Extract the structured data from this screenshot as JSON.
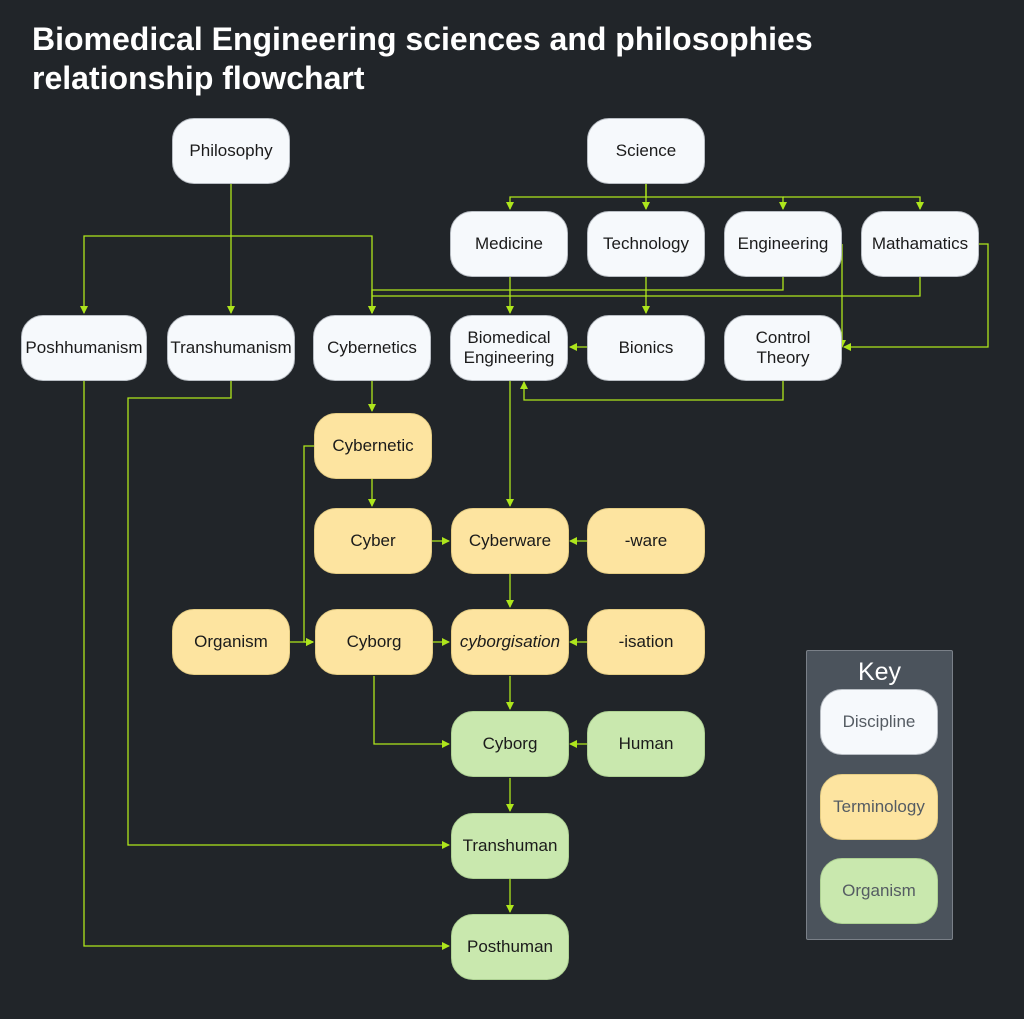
{
  "title": "Biomedical Engineering sciences and philosophies relationship flowchart",
  "colors": {
    "background": "#212529",
    "edge": "#aee61c",
    "discipline": "#f6f9fc",
    "terminology": "#fde4a0",
    "organism": "#c9e8ae"
  },
  "nodes": {
    "philosophy": "Philosophy",
    "science": "Science",
    "medicine": "Medicine",
    "technology": "Technology",
    "engineering": "Engineering",
    "mathematics": "Mathamatics",
    "poshhumanism": "Poshhumanism",
    "transhumanism": "Transhumanism",
    "cybernetics": "Cybernetics",
    "biomedical_1": "Biomedical",
    "biomedical_2": "Engineering",
    "bionics": "Bionics",
    "control_1": "Control",
    "control_2": "Theory",
    "cybernetic": "Cybernetic",
    "cyber": "Cyber",
    "cyberware": "Cyberware",
    "ware": "-ware",
    "organism_term": "Organism",
    "cyborg_term": "Cyborg",
    "cyborgisation": "cyborgisation",
    "isation": "-isation",
    "cyborg_org": "Cyborg",
    "human": "Human",
    "transhuman": "Transhuman",
    "posthuman": "Posthuman"
  },
  "key": {
    "title": "Key",
    "discipline": "Discipline",
    "terminology": "Terminology",
    "organism": "Organism"
  }
}
